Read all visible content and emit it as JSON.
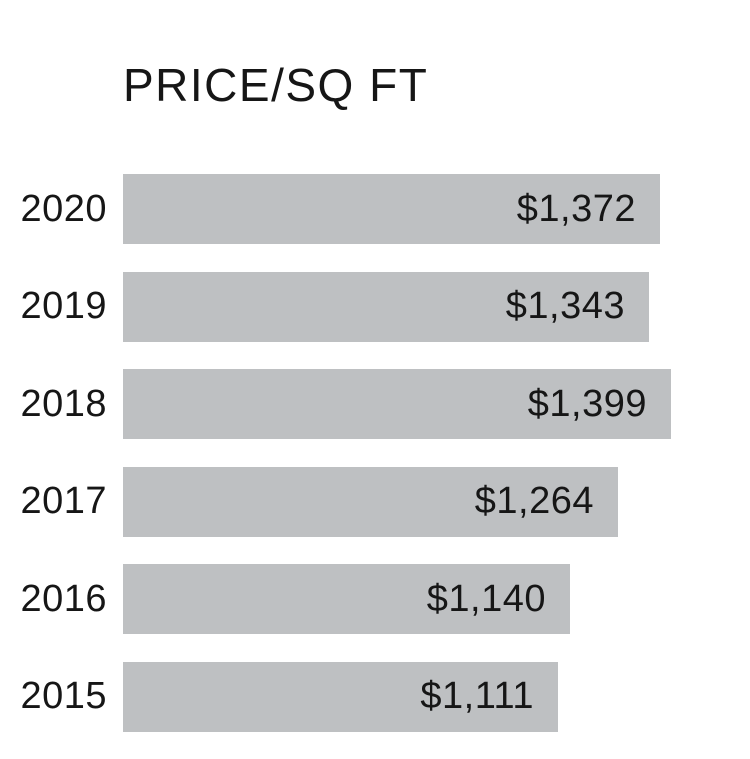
{
  "page": {
    "background_color": "#ffffff",
    "text_color": "#161616"
  },
  "colors": {
    "bar": "#bec0c2"
  },
  "chart_data": {
    "type": "bar",
    "orientation": "horizontal",
    "title": "PRICE/SQ FT",
    "categories": [
      "2020",
      "2019",
      "2018",
      "2017",
      "2016",
      "2015"
    ],
    "values": [
      1372,
      1343,
      1399,
      1264,
      1140,
      1111
    ],
    "value_labels": [
      "$1,372",
      "$1,343",
      "$1,399",
      "$1,264",
      "$1,140",
      "$1,111"
    ],
    "value_label_position": "inside-right",
    "xlim": [
      0,
      1399
    ],
    "grid": false,
    "legend": false,
    "axis_lines": false
  }
}
